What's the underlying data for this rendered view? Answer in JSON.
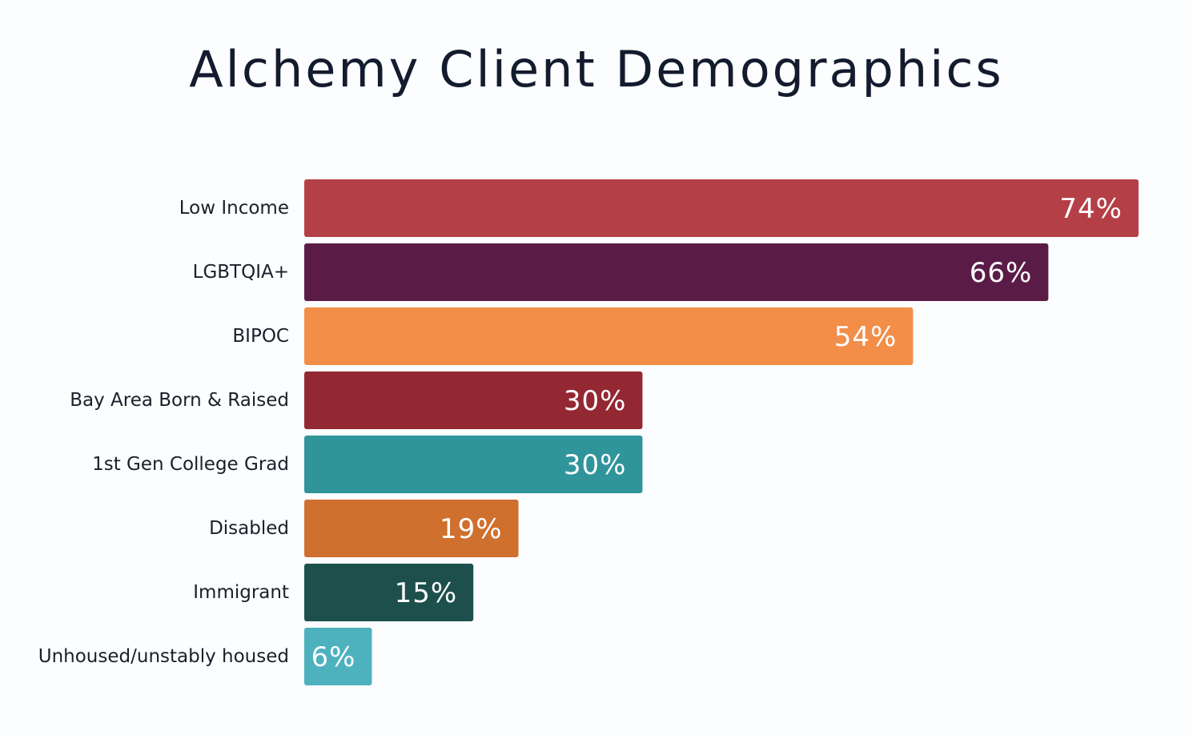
{
  "chart_data": {
    "type": "bar",
    "orientation": "horizontal",
    "title": "Alchemy Client Demographics",
    "xlabel": "",
    "ylabel": "",
    "xlim": [
      0,
      74
    ],
    "grid": false,
    "legend": "none",
    "categories": [
      "Low Income",
      "LGBTQIA+",
      "BIPOC",
      "Bay Area Born & Raised",
      "1st Gen College Grad",
      "Disabled",
      "Immigrant",
      "Unhoused/unstably housed"
    ],
    "values": [
      74,
      66,
      54,
      30,
      30,
      19,
      15,
      6
    ],
    "value_labels": [
      "74%",
      "66%",
      "54%",
      "30%",
      "30%",
      "19%",
      "15%",
      "6%"
    ],
    "colors": [
      "#b43f46",
      "#5a1c47",
      "#f28e48",
      "#932833",
      "#30949b",
      "#cf702f",
      "#1d504c",
      "#4db1be"
    ]
  }
}
